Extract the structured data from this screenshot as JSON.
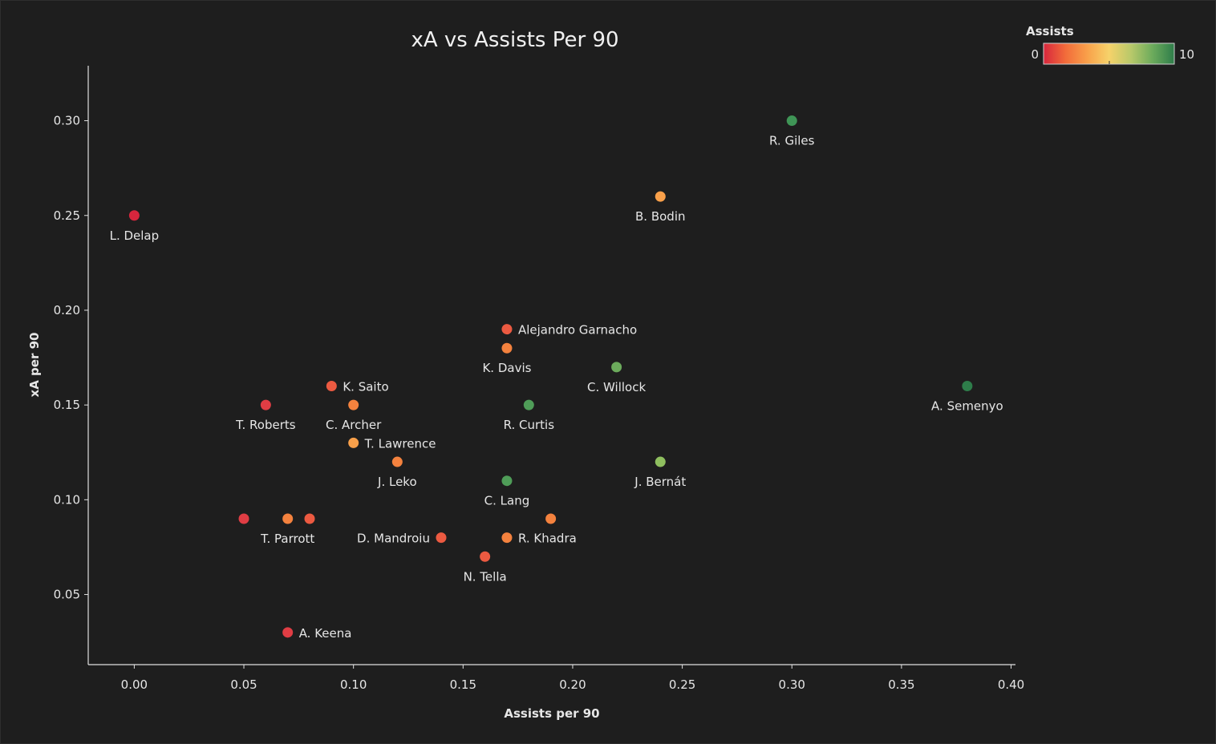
{
  "chart_data": {
    "type": "scatter",
    "title": "xA vs Assists Per 90",
    "xlabel": "Assists per 90",
    "ylabel": "xA per 90",
    "xlim": [
      -0.021,
      0.402
    ],
    "ylim": [
      0.013,
      0.329
    ],
    "xticks": [
      "0.00",
      "0.05",
      "0.10",
      "0.15",
      "0.20",
      "0.25",
      "0.30",
      "0.35",
      "0.40"
    ],
    "yticks": [
      "0.05",
      "0.10",
      "0.15",
      "0.20",
      "0.25",
      "0.30"
    ],
    "grid": false,
    "color_legend": {
      "title": "Assists",
      "min_label": "0",
      "max_label": "10",
      "placement": "top-right",
      "colors": [
        "#d7263d",
        "#f26b3a",
        "#f9a04a",
        "#f6d26a",
        "#b9c96a",
        "#6cab5c",
        "#2e7d4a"
      ]
    },
    "points": [
      {
        "label": "R. Giles",
        "x": 0.3,
        "y": 0.3,
        "color": "#3f9556",
        "label_pos": "below"
      },
      {
        "label": "B. Bodin",
        "x": 0.24,
        "y": 0.26,
        "color": "#f9a04a",
        "label_pos": "below"
      },
      {
        "label": "L. Delap",
        "x": 0.0,
        "y": 0.25,
        "color": "#d7263d",
        "label_pos": "below"
      },
      {
        "label": "Alejandro Garnacho",
        "x": 0.17,
        "y": 0.19,
        "color": "#ec5a41",
        "label_pos": "right"
      },
      {
        "label": "K. Davis",
        "x": 0.17,
        "y": 0.18,
        "color": "#f4823e",
        "label_pos": "below"
      },
      {
        "label": "C. Willock",
        "x": 0.22,
        "y": 0.17,
        "color": "#6cab5c",
        "label_pos": "below"
      },
      {
        "label": "A. Semenyo",
        "x": 0.38,
        "y": 0.16,
        "color": "#2e7d4a",
        "label_pos": "below"
      },
      {
        "label": "K. Saito",
        "x": 0.09,
        "y": 0.16,
        "color": "#ec5a41",
        "label_pos": "right"
      },
      {
        "label": "T. Roberts",
        "x": 0.06,
        "y": 0.15,
        "color": "#e03d44",
        "label_pos": "below"
      },
      {
        "label": "C. Archer",
        "x": 0.1,
        "y": 0.15,
        "color": "#f4823e",
        "label_pos": "below"
      },
      {
        "label": "R. Curtis",
        "x": 0.18,
        "y": 0.15,
        "color": "#4f9d58",
        "label_pos": "below"
      },
      {
        "label": "T. Lawrence",
        "x": 0.1,
        "y": 0.13,
        "color": "#f9a04a",
        "label_pos": "right"
      },
      {
        "label": "J. Leko",
        "x": 0.12,
        "y": 0.12,
        "color": "#f4823e",
        "label_pos": "below"
      },
      {
        "label": "J. Bernát",
        "x": 0.24,
        "y": 0.12,
        "color": "#8fbf5f",
        "label_pos": "below"
      },
      {
        "label": "C. Lang",
        "x": 0.17,
        "y": 0.11,
        "color": "#4f9d58",
        "label_pos": "below"
      },
      {
        "label": "",
        "x": 0.05,
        "y": 0.09,
        "color": "#e03d44",
        "label_pos": "none"
      },
      {
        "label": "T. Parrott",
        "x": 0.07,
        "y": 0.09,
        "color": "#f4823e",
        "label_pos": "below"
      },
      {
        "label": "",
        "x": 0.08,
        "y": 0.09,
        "color": "#ec5a41",
        "label_pos": "none"
      },
      {
        "label": "",
        "x": 0.19,
        "y": 0.09,
        "color": "#f4823e",
        "label_pos": "none"
      },
      {
        "label": "D. Mandroiu",
        "x": 0.14,
        "y": 0.08,
        "color": "#ec5a41",
        "label_pos": "left"
      },
      {
        "label": "R. Khadra",
        "x": 0.17,
        "y": 0.08,
        "color": "#f4823e",
        "label_pos": "right"
      },
      {
        "label": "N. Tella",
        "x": 0.16,
        "y": 0.07,
        "color": "#ec5a41",
        "label_pos": "below"
      },
      {
        "label": "A. Keena",
        "x": 0.07,
        "y": 0.03,
        "color": "#e03d44",
        "label_pos": "right"
      }
    ]
  }
}
